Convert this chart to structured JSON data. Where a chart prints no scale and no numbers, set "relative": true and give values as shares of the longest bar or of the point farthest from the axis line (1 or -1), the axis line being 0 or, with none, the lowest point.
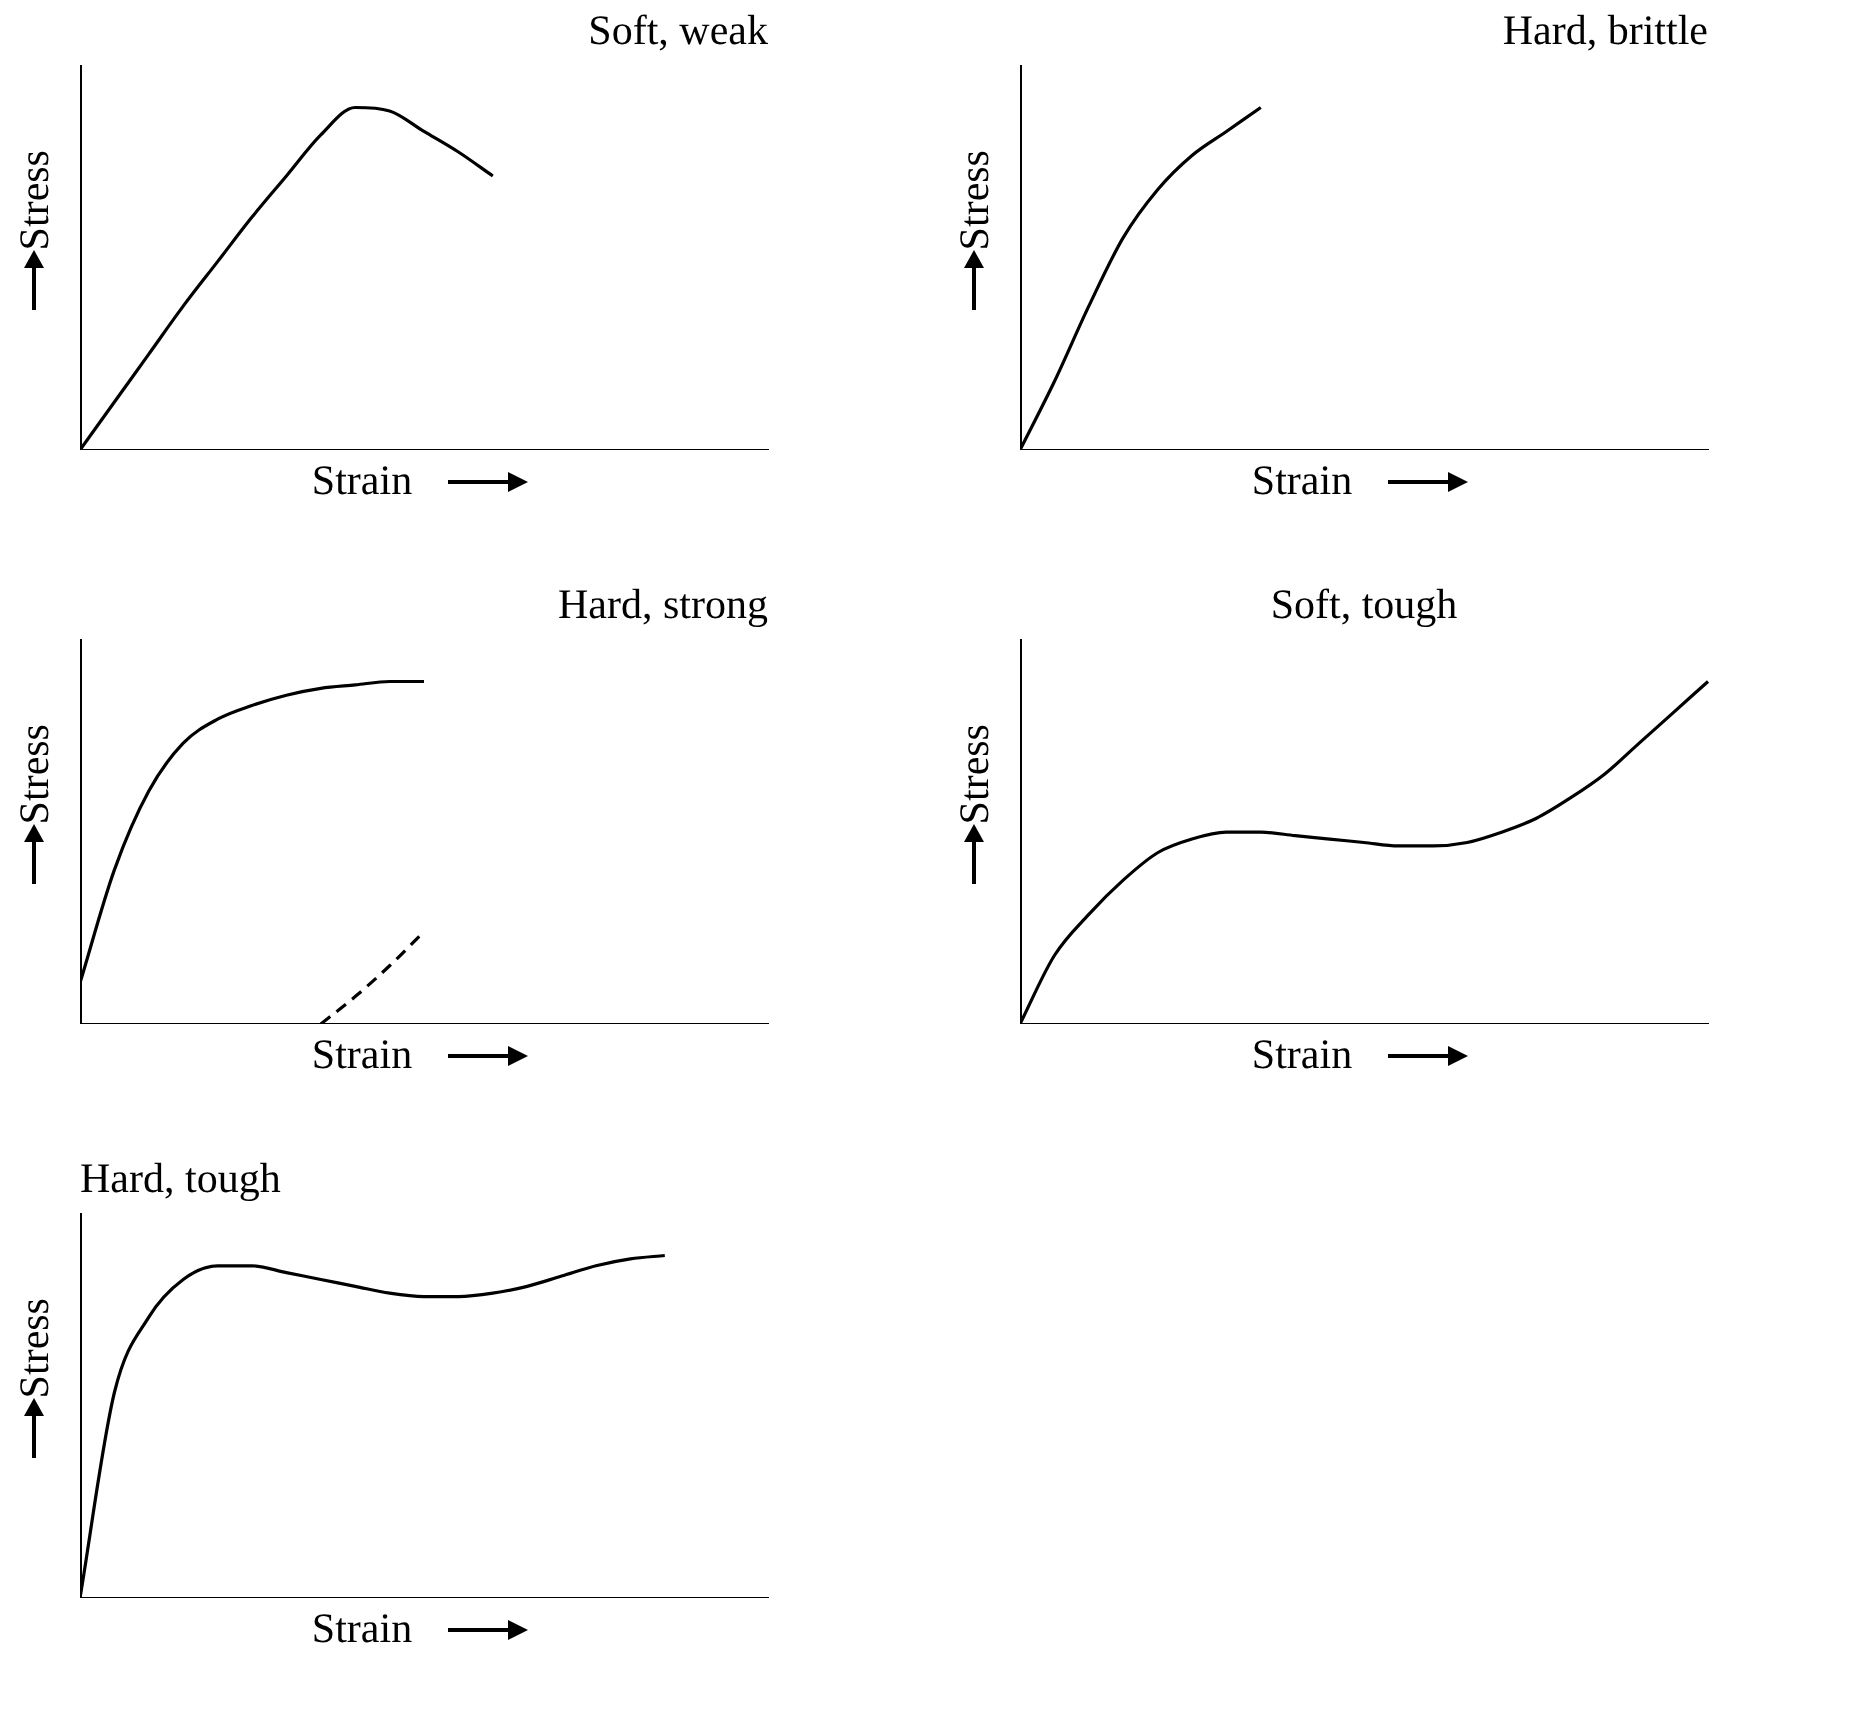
{
  "chart_data": [
    {
      "type": "line",
      "title": "Soft, weak",
      "xlabel": "Strain",
      "ylabel": "Stress",
      "relative": true,
      "legend": false,
      "grid": false,
      "marker": "none",
      "line_style": "solid",
      "categories": [
        null,
        null,
        null,
        null,
        null,
        null,
        null,
        null,
        null,
        null,
        null,
        null,
        null,
        null,
        null,
        null,
        null,
        null,
        null,
        null,
        null
      ],
      "series": [
        {
          "color": "#000000",
          "values": [
            0,
            0.14,
            0.28,
            0.42,
            0.55,
            0.68,
            0.8,
            0.92,
            1,
            0.99,
            0.93,
            0.87,
            0.8,
            null,
            null,
            null,
            null,
            null,
            null,
            null,
            null
          ]
        }
      ]
    },
    {
      "type": "line",
      "title": "Hard, brittle",
      "xlabel": "Strain",
      "ylabel": "Stress",
      "relative": true,
      "legend": false,
      "grid": false,
      "marker": "none",
      "line_style": "solid",
      "categories": [
        null,
        null,
        null,
        null,
        null,
        null,
        null,
        null,
        null,
        null,
        null,
        null,
        null,
        null,
        null,
        null,
        null,
        null,
        null,
        null,
        null
      ],
      "series": [
        {
          "color": "#000000",
          "values": [
            0,
            0.2,
            0.42,
            0.62,
            0.76,
            0.86,
            0.93,
            1,
            null,
            null,
            null,
            null,
            null,
            null,
            null,
            null,
            null,
            null,
            null,
            null,
            null
          ]
        }
      ]
    },
    {
      "type": "line",
      "title": "Hard, strong",
      "xlabel": "Strain",
      "ylabel": "Stress",
      "relative": true,
      "legend": false,
      "grid": false,
      "marker": "none",
      "line_style": "solid",
      "categories": [
        null,
        null,
        null,
        null,
        null,
        null,
        null,
        null,
        null,
        null,
        null,
        null,
        null,
        null,
        null,
        null,
        null,
        null,
        null,
        null,
        null
      ],
      "series": [
        {
          "color": "#000000",
          "values": [
            0.12,
            0.45,
            0.68,
            0.82,
            0.89,
            0.93,
            0.96,
            0.98,
            0.99,
            1,
            1,
            null,
            null,
            null,
            null,
            null,
            null,
            null,
            null,
            null,
            null
          ]
        },
        {
          "color": "#000000",
          "line_style": "dashed",
          "values": [
            null,
            null,
            null,
            null,
            null,
            null,
            null,
            0,
            0.08,
            0.17,
            0.27,
            null,
            null,
            null,
            null,
            null,
            null,
            null,
            null,
            null,
            null
          ]
        }
      ]
    },
    {
      "type": "line",
      "title": "Soft, tough",
      "xlabel": "Strain",
      "ylabel": "Stress",
      "relative": true,
      "legend": false,
      "grid": false,
      "marker": "none",
      "line_style": "solid",
      "categories": [
        null,
        null,
        null,
        null,
        null,
        null,
        null,
        null,
        null,
        null,
        null,
        null,
        null,
        null,
        null,
        null,
        null,
        null,
        null,
        null,
        null
      ],
      "series": [
        {
          "color": "#000000",
          "values": [
            0,
            0.2,
            0.32,
            0.42,
            0.5,
            0.54,
            0.56,
            0.56,
            0.55,
            0.54,
            0.53,
            0.52,
            0.52,
            0.53,
            0.56,
            0.6,
            0.66,
            0.73,
            0.82,
            0.91,
            1
          ]
        }
      ]
    },
    {
      "type": "line",
      "title": "Hard, tough",
      "xlabel": "Strain",
      "ylabel": "Stress",
      "relative": true,
      "legend": false,
      "grid": false,
      "marker": "none",
      "line_style": "solid",
      "categories": [
        null,
        null,
        null,
        null,
        null,
        null,
        null,
        null,
        null,
        null,
        null,
        null,
        null,
        null,
        null,
        null,
        null,
        null,
        null,
        null,
        null
      ],
      "series": [
        {
          "color": "#000000",
          "values": [
            0,
            0.6,
            0.82,
            0.93,
            0.97,
            0.97,
            0.95,
            0.93,
            0.91,
            0.89,
            0.88,
            0.88,
            0.89,
            0.91,
            0.94,
            0.97,
            0.99,
            1,
            null,
            null,
            null
          ]
        }
      ]
    }
  ]
}
